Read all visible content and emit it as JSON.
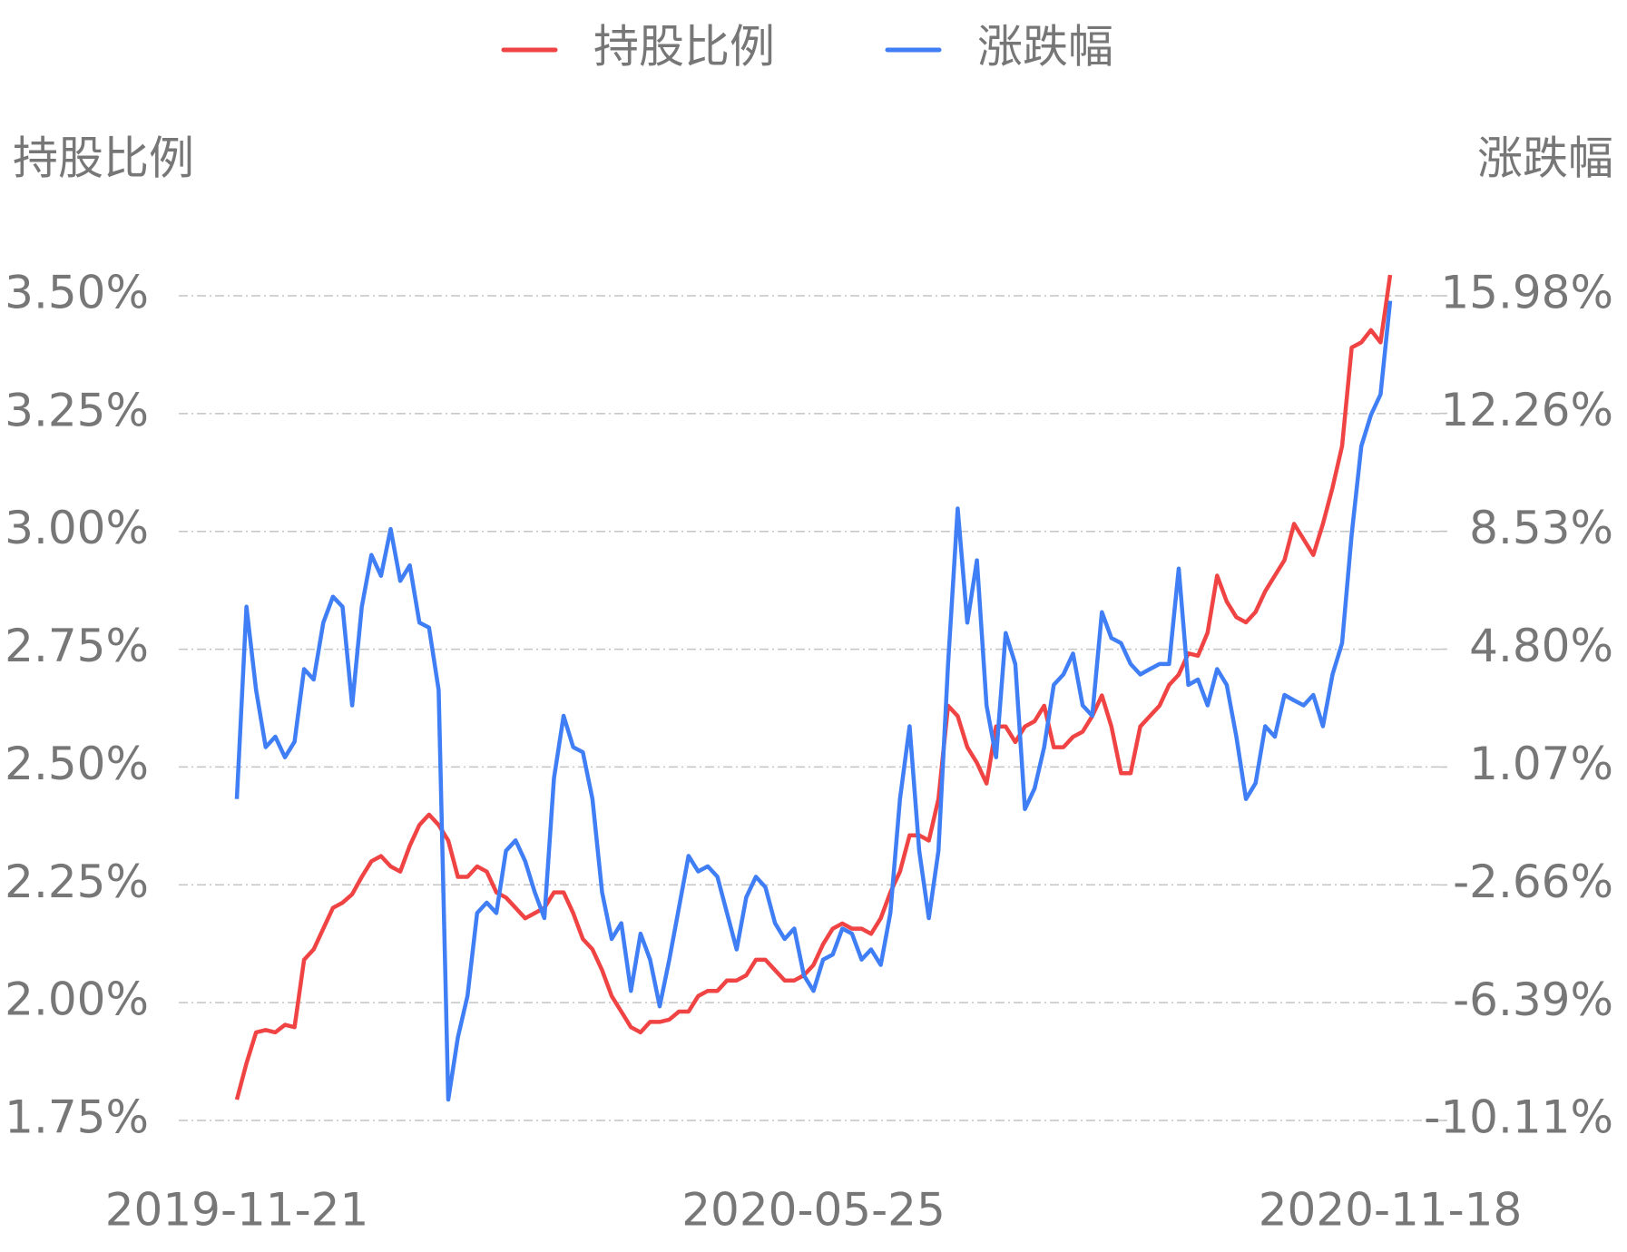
{
  "chart_data": {
    "type": "line",
    "y_label": "持股比例",
    "y2_label": "涨跌幅",
    "legend": "top",
    "grid": true,
    "categories": [
      "2019-11-21",
      null,
      null,
      null,
      null,
      null,
      null,
      null,
      null,
      null,
      null,
      null,
      null,
      null,
      null,
      null,
      null,
      null,
      null,
      null,
      null,
      null,
      null,
      null,
      null,
      null,
      null,
      null,
      null,
      null,
      null,
      null,
      null,
      null,
      null,
      null,
      null,
      null,
      null,
      null,
      null,
      null,
      null,
      null,
      null,
      null,
      null,
      null,
      null,
      null,
      null,
      null,
      null,
      null,
      null,
      null,
      null,
      null,
      null,
      null,
      "2020-05-25",
      null,
      null,
      null,
      null,
      null,
      null,
      null,
      null,
      null,
      null,
      null,
      null,
      null,
      null,
      null,
      null,
      null,
      null,
      null,
      null,
      null,
      null,
      null,
      null,
      null,
      null,
      null,
      null,
      null,
      null,
      null,
      null,
      null,
      null,
      null,
      null,
      null,
      null,
      null,
      null,
      null,
      null,
      null,
      null,
      null,
      null,
      null,
      null,
      null,
      null,
      null,
      null,
      null,
      null,
      null,
      null,
      null,
      null,
      null,
      "2020-11-18"
    ],
    "series": [
      {
        "name": "持股比例",
        "color": "#f04444",
        "axis": "y",
        "values": [
          1.794,
          1.871,
          1.937,
          1.942,
          1.937,
          1.953,
          1.948,
          2.091,
          2.113,
          2.157,
          2.201,
          2.212,
          2.23,
          2.267,
          2.3,
          2.311,
          2.289,
          2.278,
          2.333,
          2.377,
          2.399,
          2.377,
          2.344,
          2.267,
          2.267,
          2.289,
          2.278,
          2.234,
          2.223,
          2.201,
          2.179,
          2.19,
          2.201,
          2.234,
          2.234,
          2.19,
          2.135,
          2.113,
          2.069,
          2.014,
          1.981,
          1.948,
          1.937,
          1.959,
          1.959,
          1.964,
          1.981,
          1.981,
          2.014,
          2.025,
          2.025,
          2.047,
          2.047,
          2.058,
          2.091,
          2.091,
          2.069,
          2.047,
          2.047,
          2.058,
          2.08,
          2.124,
          2.157,
          2.168,
          2.157,
          2.157,
          2.146,
          2.179,
          2.234,
          2.278,
          2.355,
          2.355,
          2.344,
          2.432,
          2.63,
          2.608,
          2.542,
          2.509,
          2.465,
          2.586,
          2.586,
          2.553,
          2.586,
          2.597,
          2.63,
          2.542,
          2.542,
          2.564,
          2.575,
          2.608,
          2.652,
          2.586,
          2.487,
          2.487,
          2.586,
          2.608,
          2.63,
          2.674,
          2.696,
          2.741,
          2.736,
          2.785,
          2.906,
          2.851,
          2.818,
          2.807,
          2.829,
          2.873,
          2.906,
          2.939,
          3.016,
          2.983,
          2.95,
          3.016,
          3.093,
          3.181,
          3.39,
          3.401,
          3.427,
          3.401,
          3.544
        ]
      },
      {
        "name": "涨跌幅",
        "color": "#3f7ef5",
        "axis": "y2",
        "values": [
          0.06,
          6.14,
          3.51,
          1.7,
          2.03,
          1.38,
          1.87,
          4.17,
          3.84,
          5.64,
          6.46,
          6.14,
          3.02,
          6.14,
          7.78,
          7.12,
          8.6,
          6.96,
          7.45,
          5.64,
          5.48,
          3.51,
          -9.45,
          -7.48,
          -6.17,
          -3.55,
          -3.22,
          -3.55,
          -1.58,
          -1.25,
          -1.91,
          -2.89,
          -3.71,
          0.72,
          2.69,
          1.7,
          1.54,
          0.06,
          -2.89,
          -4.37,
          -3.87,
          -6.01,
          -4.2,
          -5.02,
          -6.5,
          -5.02,
          -3.38,
          -1.74,
          -2.23,
          -2.07,
          -2.4,
          -3.55,
          -4.7,
          -3.05,
          -2.4,
          -2.73,
          -3.87,
          -4.37,
          -4.04,
          -5.52,
          -6.01,
          -5.02,
          -4.86,
          -4.04,
          -4.2,
          -5.02,
          -4.7,
          -5.19,
          -3.55,
          0.06,
          2.36,
          -1.58,
          -3.71,
          -1.58,
          4.33,
          9.25,
          5.64,
          7.61,
          3.02,
          1.38,
          5.31,
          4.33,
          -0.26,
          0.39,
          1.7,
          3.67,
          4.0,
          4.66,
          3.02,
          2.69,
          5.97,
          5.15,
          4.99,
          4.33,
          4.0,
          4.17,
          4.33,
          4.33,
          7.35,
          3.67,
          3.84,
          3.02,
          4.17,
          3.67,
          2.03,
          0.06,
          0.56,
          2.36,
          2.03,
          3.35,
          3.18,
          3.02,
          3.35,
          2.36,
          4.0,
          4.99,
          8.43,
          11.22,
          12.21,
          12.86,
          15.82
        ]
      }
    ],
    "ylim": [
      1.75,
      3.5
    ],
    "yticks": [
      {
        "value": 1.75,
        "label": "1.75%"
      },
      {
        "value": 2.0,
        "label": "2.00%"
      },
      {
        "value": 2.25,
        "label": "2.25%"
      },
      {
        "value": 2.5,
        "label": "2.50%"
      },
      {
        "value": 2.75,
        "label": "2.75%"
      },
      {
        "value": 3.0,
        "label": "3.00%"
      },
      {
        "value": 3.25,
        "label": "3.25%"
      },
      {
        "value": 3.5,
        "label": "3.50%"
      }
    ],
    "y2lim": [
      -10.11,
      15.98
    ],
    "y2ticks": [
      {
        "value": -10.11,
        "label": "-10.11%"
      },
      {
        "value": -6.39,
        "label": "-6.39%"
      },
      {
        "value": -2.66,
        "label": "-2.66%"
      },
      {
        "value": 1.07,
        "label": "1.07%"
      },
      {
        "value": 4.8,
        "label": "4.80%"
      },
      {
        "value": 8.53,
        "label": "8.53%"
      },
      {
        "value": 12.26,
        "label": "12.26%"
      },
      {
        "value": 15.98,
        "label": "15.98%"
      }
    ]
  }
}
